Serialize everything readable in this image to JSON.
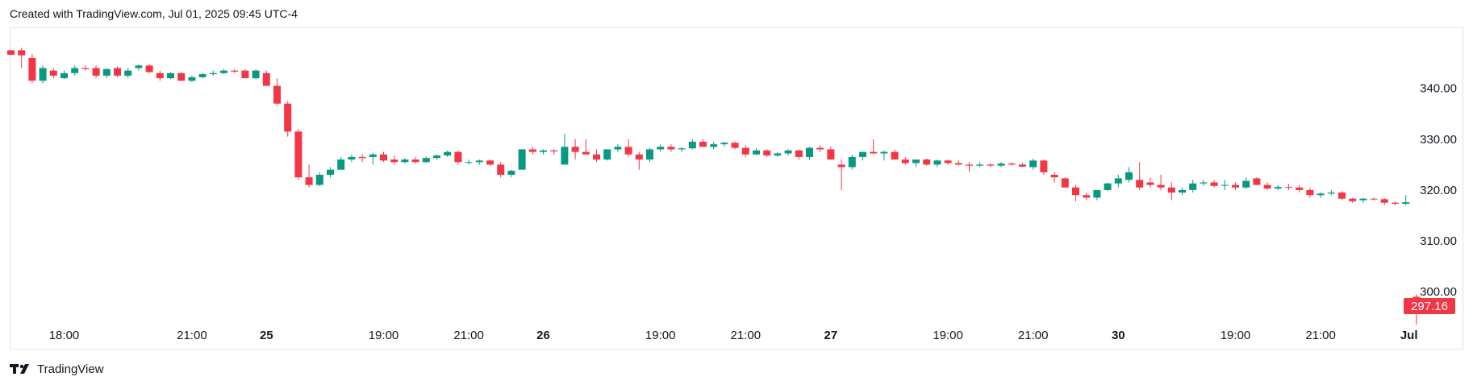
{
  "header": {
    "text": "Created with TradingView.com, Jul 01, 2025 09:45 UTC-4"
  },
  "footer": {
    "brand": "TradingView",
    "logo_icon": "tradingview-logo-icon"
  },
  "colors": {
    "up": "#089981",
    "down": "#f23645",
    "grid": "#e0e3eb",
    "text": "#131722"
  },
  "chart_data": {
    "type": "candlestick",
    "ylim": [
      294,
      352
    ],
    "grid": false,
    "y_ticks": [
      300,
      310,
      320,
      330,
      340
    ],
    "y_tick_labels": [
      "300.00",
      "310.00",
      "320.00",
      "330.00",
      "340.00"
    ],
    "x_ticks": [
      {
        "label": "18:00",
        "index": 5,
        "bold": false
      },
      {
        "label": "21:00",
        "index": 17,
        "bold": false
      },
      {
        "label": "25",
        "index": 24,
        "bold": true
      },
      {
        "label": "19:00",
        "index": 35,
        "bold": false
      },
      {
        "label": "21:00",
        "index": 43,
        "bold": false
      },
      {
        "label": "26",
        "index": 50,
        "bold": true
      },
      {
        "label": "19:00",
        "index": 61,
        "bold": false
      },
      {
        "label": "21:00",
        "index": 69,
        "bold": false
      },
      {
        "label": "27",
        "index": 77,
        "bold": true
      },
      {
        "label": "19:00",
        "index": 88,
        "bold": false
      },
      {
        "label": "21:00",
        "index": 96,
        "bold": false
      },
      {
        "label": "30",
        "index": 104,
        "bold": true
      },
      {
        "label": "19:00",
        "index": 115,
        "bold": false
      },
      {
        "label": "21:00",
        "index": 123,
        "bold": false
      },
      {
        "label": "Jul",
        "index": 131,
        "bold": true
      }
    ],
    "last_price": 297.16,
    "last_price_label": "297.16",
    "candles": [
      [
        347.5,
        347.5,
        346.5,
        346.6
      ],
      [
        347.5,
        348.0,
        344.0,
        346.5
      ],
      [
        346.0,
        346.8,
        341.0,
        341.5
      ],
      [
        341.5,
        344.5,
        341.0,
        344.0
      ],
      [
        343.5,
        344.0,
        342.0,
        342.5
      ],
      [
        342.0,
        343.5,
        341.8,
        343.0
      ],
      [
        343.0,
        344.5,
        342.5,
        344.0
      ],
      [
        344.0,
        344.5,
        343.5,
        343.8
      ],
      [
        344.0,
        344.5,
        342.0,
        342.5
      ],
      [
        342.5,
        344.0,
        342.0,
        343.8
      ],
      [
        344.0,
        344.3,
        342.2,
        342.5
      ],
      [
        342.5,
        344.0,
        342.0,
        343.5
      ],
      [
        344.0,
        344.8,
        343.5,
        344.5
      ],
      [
        344.5,
        344.8,
        343.0,
        343.2
      ],
      [
        343.0,
        343.5,
        341.5,
        342.0
      ],
      [
        342.0,
        343.2,
        341.8,
        343.0
      ],
      [
        343.0,
        343.2,
        341.5,
        341.5
      ],
      [
        341.5,
        342.5,
        341.2,
        342.2
      ],
      [
        342.2,
        343.0,
        342.0,
        342.8
      ],
      [
        342.8,
        343.5,
        342.5,
        343.0
      ],
      [
        343.0,
        343.8,
        342.8,
        343.5
      ],
      [
        343.5,
        343.8,
        343.0,
        343.3
      ],
      [
        343.5,
        343.8,
        342.0,
        342.0
      ],
      [
        342.0,
        343.8,
        341.8,
        343.5
      ],
      [
        343.0,
        343.5,
        340.5,
        340.5
      ],
      [
        340.5,
        342.0,
        336.5,
        337.0
      ],
      [
        337.0,
        337.5,
        330.5,
        331.5
      ],
      [
        331.5,
        332.0,
        322.0,
        322.5
      ],
      [
        322.5,
        325.0,
        320.5,
        321.0
      ],
      [
        321.0,
        323.5,
        320.8,
        323.0
      ],
      [
        323.0,
        324.5,
        322.5,
        324.0
      ],
      [
        324.0,
        326.5,
        324.0,
        326.0
      ],
      [
        326.0,
        327.0,
        325.5,
        326.5
      ],
      [
        326.5,
        327.0,
        325.5,
        326.3
      ],
      [
        326.5,
        327.3,
        325.0,
        327.0
      ],
      [
        327.0,
        327.5,
        325.5,
        325.8
      ],
      [
        326.0,
        326.8,
        325.0,
        325.5
      ],
      [
        325.5,
        326.3,
        325.2,
        326.0
      ],
      [
        326.0,
        326.5,
        325.2,
        325.5
      ],
      [
        325.5,
        326.6,
        325.3,
        326.3
      ],
      [
        326.3,
        327.0,
        326.0,
        326.8
      ],
      [
        326.8,
        327.8,
        326.5,
        327.5
      ],
      [
        327.5,
        327.8,
        325.0,
        325.5
      ],
      [
        325.5,
        326.0,
        325.0,
        325.5
      ],
      [
        325.5,
        326.0,
        325.0,
        325.8
      ],
      [
        325.8,
        326.0,
        324.8,
        325.0
      ],
      [
        325.0,
        325.5,
        322.5,
        323.0
      ],
      [
        323.0,
        324.0,
        322.5,
        323.8
      ],
      [
        324.0,
        328.0,
        324.0,
        328.0
      ],
      [
        328.0,
        328.5,
        327.0,
        327.5
      ],
      [
        327.5,
        328.0,
        327.0,
        327.8
      ],
      [
        327.8,
        328.0,
        327.0,
        327.6
      ],
      [
        325.0,
        331.0,
        325.0,
        328.5
      ],
      [
        328.5,
        330.0,
        326.0,
        327.5
      ],
      [
        327.5,
        330.0,
        327.0,
        327.0
      ],
      [
        327.0,
        328.0,
        325.5,
        326.0
      ],
      [
        326.0,
        328.0,
        325.8,
        328.0
      ],
      [
        328.0,
        329.0,
        327.5,
        328.5
      ],
      [
        328.5,
        330.0,
        326.5,
        327.0
      ],
      [
        327.0,
        327.5,
        324.0,
        326.0
      ],
      [
        326.0,
        328.3,
        325.5,
        328.0
      ],
      [
        328.0,
        329.0,
        327.5,
        328.5
      ],
      [
        328.5,
        329.0,
        327.5,
        328.0
      ],
      [
        328.0,
        328.5,
        327.5,
        328.2
      ],
      [
        328.2,
        330.0,
        328.0,
        329.5
      ],
      [
        329.5,
        330.0,
        328.5,
        328.5
      ],
      [
        328.5,
        329.5,
        328.0,
        329.0
      ],
      [
        329.0,
        329.5,
        328.5,
        329.3
      ],
      [
        329.3,
        329.5,
        328.0,
        328.3
      ],
      [
        328.3,
        328.8,
        326.5,
        327.0
      ],
      [
        327.0,
        328.2,
        326.8,
        327.8
      ],
      [
        327.8,
        328.0,
        326.5,
        326.8
      ],
      [
        326.8,
        327.5,
        326.5,
        327.2
      ],
      [
        327.2,
        328.0,
        326.8,
        327.8
      ],
      [
        327.8,
        328.0,
        326.0,
        326.5
      ],
      [
        326.5,
        328.5,
        326.0,
        328.3
      ],
      [
        328.3,
        328.8,
        327.5,
        328.0
      ],
      [
        328.0,
        328.5,
        326.0,
        326.0
      ],
      [
        325.0,
        326.0,
        320.0,
        324.5
      ],
      [
        324.5,
        327.0,
        324.0,
        326.5
      ],
      [
        326.5,
        327.5,
        325.8,
        327.5
      ],
      [
        327.5,
        330.0,
        327.0,
        327.2
      ],
      [
        327.2,
        327.8,
        325.8,
        327.5
      ],
      [
        327.5,
        328.0,
        326.0,
        326.0
      ],
      [
        326.0,
        326.5,
        325.0,
        325.3
      ],
      [
        325.3,
        326.0,
        324.5,
        326.0
      ],
      [
        326.0,
        326.2,
        324.8,
        325.0
      ],
      [
        325.0,
        326.0,
        324.5,
        325.8
      ],
      [
        325.8,
        326.0,
        325.0,
        325.3
      ],
      [
        325.3,
        325.8,
        324.8,
        325.0
      ],
      [
        325.0,
        325.5,
        323.5,
        324.8
      ],
      [
        324.8,
        325.5,
        324.5,
        325.0
      ],
      [
        325.0,
        325.3,
        324.5,
        324.8
      ],
      [
        324.8,
        325.5,
        324.5,
        325.2
      ],
      [
        325.2,
        325.5,
        324.8,
        325.0
      ],
      [
        325.0,
        325.3,
        324.5,
        324.6
      ],
      [
        324.5,
        326.2,
        324.0,
        325.8
      ],
      [
        325.8,
        326.0,
        323.0,
        323.5
      ],
      [
        323.0,
        323.5,
        321.5,
        322.5
      ],
      [
        322.3,
        322.5,
        320.5,
        320.5
      ],
      [
        320.5,
        321.0,
        317.8,
        319.0
      ],
      [
        319.0,
        319.5,
        318.0,
        318.5
      ],
      [
        318.5,
        320.0,
        318.0,
        320.0
      ],
      [
        320.0,
        321.5,
        319.8,
        321.3
      ],
      [
        321.3,
        323.0,
        320.5,
        322.3
      ],
      [
        322.0,
        324.5,
        321.5,
        323.5
      ],
      [
        322.0,
        325.5,
        320.0,
        320.5
      ],
      [
        321.5,
        322.5,
        320.5,
        321.0
      ],
      [
        321.0,
        323.0,
        320.0,
        320.5
      ],
      [
        320.5,
        321.5,
        318.0,
        319.5
      ],
      [
        319.5,
        320.5,
        319.0,
        320.0
      ],
      [
        320.0,
        322.0,
        319.5,
        321.3
      ],
      [
        321.3,
        322.0,
        320.8,
        321.5
      ],
      [
        321.5,
        322.0,
        320.5,
        320.8
      ],
      [
        321.0,
        322.0,
        320.0,
        321.0
      ],
      [
        321.0,
        321.5,
        320.0,
        320.5
      ],
      [
        320.5,
        322.5,
        320.2,
        321.8
      ],
      [
        322.3,
        322.5,
        321.0,
        321.0
      ],
      [
        321.0,
        321.5,
        320.0,
        320.3
      ],
      [
        320.3,
        321.0,
        320.0,
        320.6
      ],
      [
        320.6,
        321.2,
        320.0,
        320.5
      ],
      [
        320.5,
        321.0,
        319.5,
        320.0
      ],
      [
        320.0,
        320.5,
        318.5,
        319.0
      ],
      [
        319.0,
        319.5,
        318.5,
        319.3
      ],
      [
        319.3,
        320.0,
        319.0,
        319.5
      ],
      [
        319.5,
        319.8,
        318.0,
        318.3
      ],
      [
        318.3,
        318.5,
        317.5,
        317.8
      ],
      [
        318.0,
        318.5,
        317.5,
        318.3
      ],
      [
        318.3,
        318.5,
        318.0,
        318.2
      ],
      [
        318.2,
        318.4,
        317.0,
        317.5
      ],
      [
        317.5,
        317.8,
        317.0,
        317.3
      ],
      [
        317.3,
        319.0,
        317.0,
        317.6
      ],
      [
        299.0,
        299.5,
        293.5,
        298.2
      ],
      [
        298.0,
        298.5,
        297.0,
        297.5
      ]
    ]
  }
}
